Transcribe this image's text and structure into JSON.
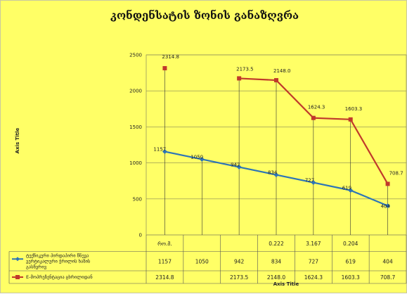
{
  "chart_data": {
    "type": "line",
    "title": "კონდენსატის ზონის განაზღვრა",
    "xlabel": "Axis Title",
    "ylabel": "Axis Title",
    "ylim": [
      0,
      2500
    ],
    "yticks": [
      0,
      500,
      1000,
      1500,
      2000,
      2500
    ],
    "grid": true,
    "legend": "bottom-left table",
    "categories": [
      "რო.მ.",
      "",
      "",
      "0.222",
      "3.167",
      "0.204",
      ""
    ],
    "series": [
      {
        "name": "ტექნიკური პირდაპირი წნევა ვერტიკალური ჭრილის ხაზის გასწვრივ",
        "color": "#2e75b6",
        "values": [
          1157,
          1050,
          942,
          834,
          727,
          619,
          404
        ],
        "labels": [
          "1157",
          "1050",
          "942",
          "834",
          "727",
          "619",
          "404"
        ]
      },
      {
        "name": "E-მოპრეზენტაცია ცხრილიდან",
        "color": "#c0392b",
        "values": [
          2314.8,
          null,
          2173.5,
          2148.0,
          1624.3,
          1603.3,
          708.7
        ],
        "labels": [
          "2314.8",
          "",
          "2173.5",
          "2148.0",
          "1624.3",
          "1603.3",
          "708.7"
        ]
      }
    ]
  }
}
